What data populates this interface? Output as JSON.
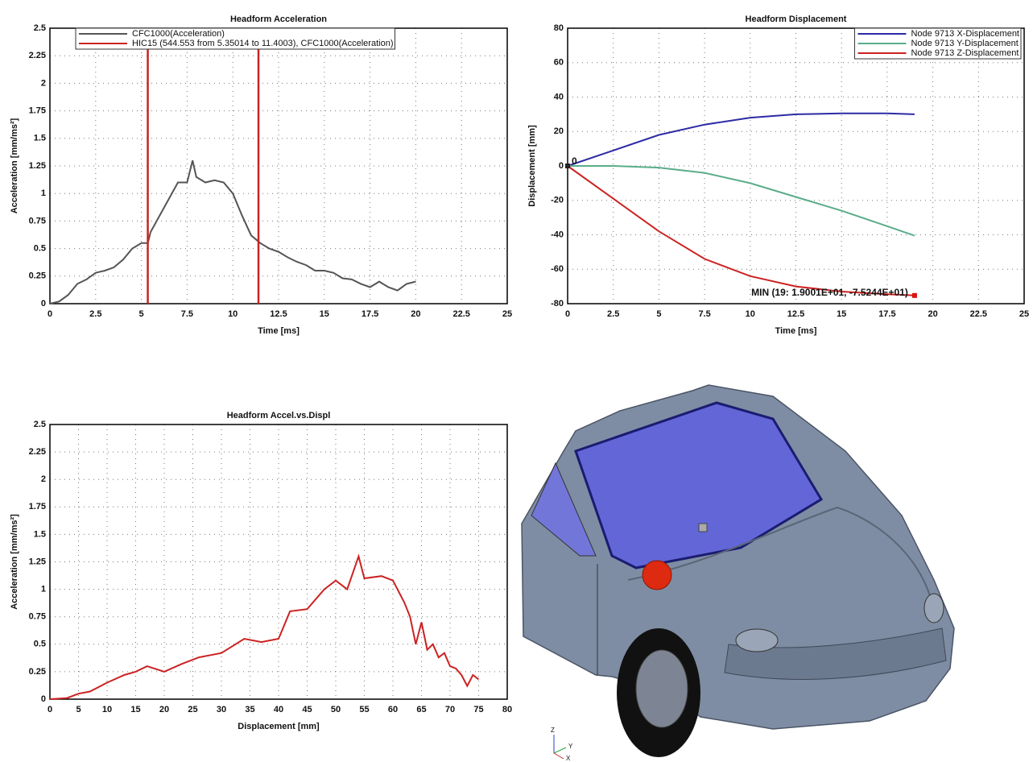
{
  "chart_data": [
    {
      "type": "line",
      "title": "Headform Acceleration",
      "xlabel": "Time [ms]",
      "ylabel": "Acceleration [mm/ms²]",
      "xlim": [
        0,
        25
      ],
      "ylim": [
        0,
        2.5
      ],
      "xticks": [
        0,
        2.5,
        5,
        7.5,
        10,
        12.5,
        15,
        17.5,
        20,
        22.5,
        25
      ],
      "yticks": [
        0,
        0.25,
        0.5,
        0.75,
        1,
        1.25,
        1.5,
        1.75,
        2,
        2.25,
        2.5
      ],
      "grid": true,
      "legend": "upper left",
      "series": [
        {
          "name": "CFC1000(Acceleration)",
          "color": "#555555",
          "x": [
            0,
            0.5,
            1,
            1.5,
            2,
            2.5,
            3,
            3.5,
            4,
            4.5,
            5,
            5.35,
            5.5,
            6,
            6.5,
            7,
            7.5,
            7.8,
            8,
            8.5,
            9,
            9.5,
            10,
            10.5,
            11,
            11.5,
            12,
            12.5,
            13,
            13.5,
            14,
            14.5,
            15,
            15.5,
            16,
            16.5,
            17,
            17.5,
            18,
            18.5,
            19,
            19.5,
            20
          ],
          "values": [
            0,
            0.02,
            0.08,
            0.18,
            0.22,
            0.28,
            0.3,
            0.33,
            0.4,
            0.5,
            0.55,
            0.55,
            0.65,
            0.8,
            0.95,
            1.1,
            1.1,
            1.3,
            1.15,
            1.1,
            1.12,
            1.1,
            1.0,
            0.8,
            0.62,
            0.55,
            0.5,
            0.47,
            0.42,
            0.38,
            0.35,
            0.3,
            0.3,
            0.28,
            0.23,
            0.22,
            0.18,
            0.15,
            0.2,
            0.15,
            0.12,
            0.18,
            0.2
          ]
        },
        {
          "name": "HIC15 (544.553 from 5.35014 to 11.4003), CFC1000(Acceleration)",
          "color": "#cc2222",
          "vlines": [
            5.35014,
            11.4003
          ]
        }
      ]
    },
    {
      "type": "line",
      "title": "Headform Displacement",
      "xlabel": "Time [ms]",
      "ylabel": "Displacement [mm]",
      "xlim": [
        0,
        25
      ],
      "ylim": [
        -80,
        80
      ],
      "xticks": [
        0,
        2.5,
        5,
        7.5,
        10,
        12.5,
        15,
        17.5,
        20,
        22.5,
        25
      ],
      "yticks": [
        -80,
        -60,
        -40,
        -20,
        0,
        20,
        40,
        60,
        80
      ],
      "grid": true,
      "legend": "upper right",
      "x": [
        0,
        2.5,
        5,
        7.5,
        10,
        12.5,
        15,
        17.5,
        19
      ],
      "series": [
        {
          "name": "Node 9713 X-Displacement",
          "color": "#2b2ba6",
          "values": [
            0,
            9,
            18,
            24,
            28,
            30,
            30.5,
            30.5,
            30
          ]
        },
        {
          "name": "Node 9713 Y-Displacement",
          "color": "#5aad8a",
          "values": [
            0,
            0,
            -1,
            -4,
            -10,
            -18,
            -26,
            -35,
            -40.5
          ]
        },
        {
          "name": "Node 9713 Z-Displacement",
          "color": "#cc2222",
          "values": [
            0,
            -19,
            -38,
            -54,
            -64,
            -70,
            -73,
            -74.5,
            -75.244
          ]
        }
      ],
      "annotations": [
        {
          "text": "0",
          "x": 0,
          "y": 0,
          "color": "#222222"
        },
        {
          "text": "MIN (19: 1.9001E+01, -7.5244E+01)",
          "x": 19,
          "y": -75.244,
          "color": "#dd1111"
        }
      ]
    },
    {
      "type": "line",
      "title": "Headform Accel.vs.Displ",
      "xlabel": "Displacement [mm]",
      "ylabel": "Acceleration [mm/ms²]",
      "xlim": [
        0,
        80
      ],
      "ylim": [
        0,
        2.5
      ],
      "xticks": [
        0,
        5,
        10,
        15,
        20,
        25,
        30,
        35,
        40,
        45,
        50,
        55,
        60,
        65,
        70,
        75,
        80
      ],
      "yticks": [
        0,
        0.25,
        0.5,
        0.75,
        1,
        1.25,
        1.5,
        1.75,
        2,
        2.25,
        2.5
      ],
      "grid": true,
      "series": [
        {
          "color": "#cc2222",
          "x": [
            0,
            3,
            5,
            7,
            10,
            13,
            15,
            17,
            20,
            23,
            26,
            30,
            34,
            37,
            40,
            42,
            45,
            48,
            50,
            52,
            54,
            55,
            58,
            60,
            62,
            63,
            64,
            65,
            66,
            67,
            68,
            69,
            70,
            71,
            72,
            73,
            74,
            75
          ],
          "values": [
            0,
            0.01,
            0.05,
            0.07,
            0.15,
            0.22,
            0.25,
            0.3,
            0.25,
            0.32,
            0.38,
            0.42,
            0.55,
            0.52,
            0.55,
            0.8,
            0.82,
            1.0,
            1.08,
            1.0,
            1.3,
            1.1,
            1.12,
            1.08,
            0.88,
            0.75,
            0.5,
            0.7,
            0.45,
            0.5,
            0.38,
            0.42,
            0.3,
            0.28,
            0.22,
            0.12,
            0.22,
            0.18
          ]
        }
      ]
    }
  ],
  "view": {
    "triad": [
      "Z",
      "Y",
      "X"
    ]
  }
}
